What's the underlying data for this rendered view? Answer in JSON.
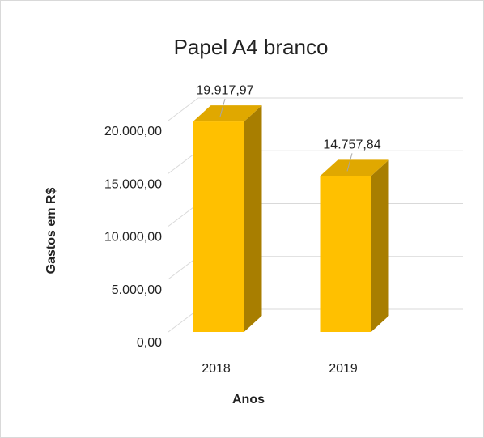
{
  "chart_data": {
    "type": "bar3d",
    "title": "Papel A4 branco",
    "x_label": "Anos",
    "y_label": "Gastos em R$",
    "categories": [
      "2018",
      "2019"
    ],
    "values": [
      19917.97,
      14757.84
    ],
    "value_labels": [
      "19.917,97",
      "14.757,84"
    ],
    "color": "#ffc000",
    "ylim": [
      0,
      20000
    ],
    "yticks": [
      {
        "value": 0,
        "label": "0,00"
      },
      {
        "value": 5000,
        "label": "5.000,00"
      },
      {
        "value": 10000,
        "label": "10.000,00"
      },
      {
        "value": 15000,
        "label": "15.000,00"
      },
      {
        "value": 20000,
        "label": "20.000,00"
      }
    ],
    "grid": true
  }
}
